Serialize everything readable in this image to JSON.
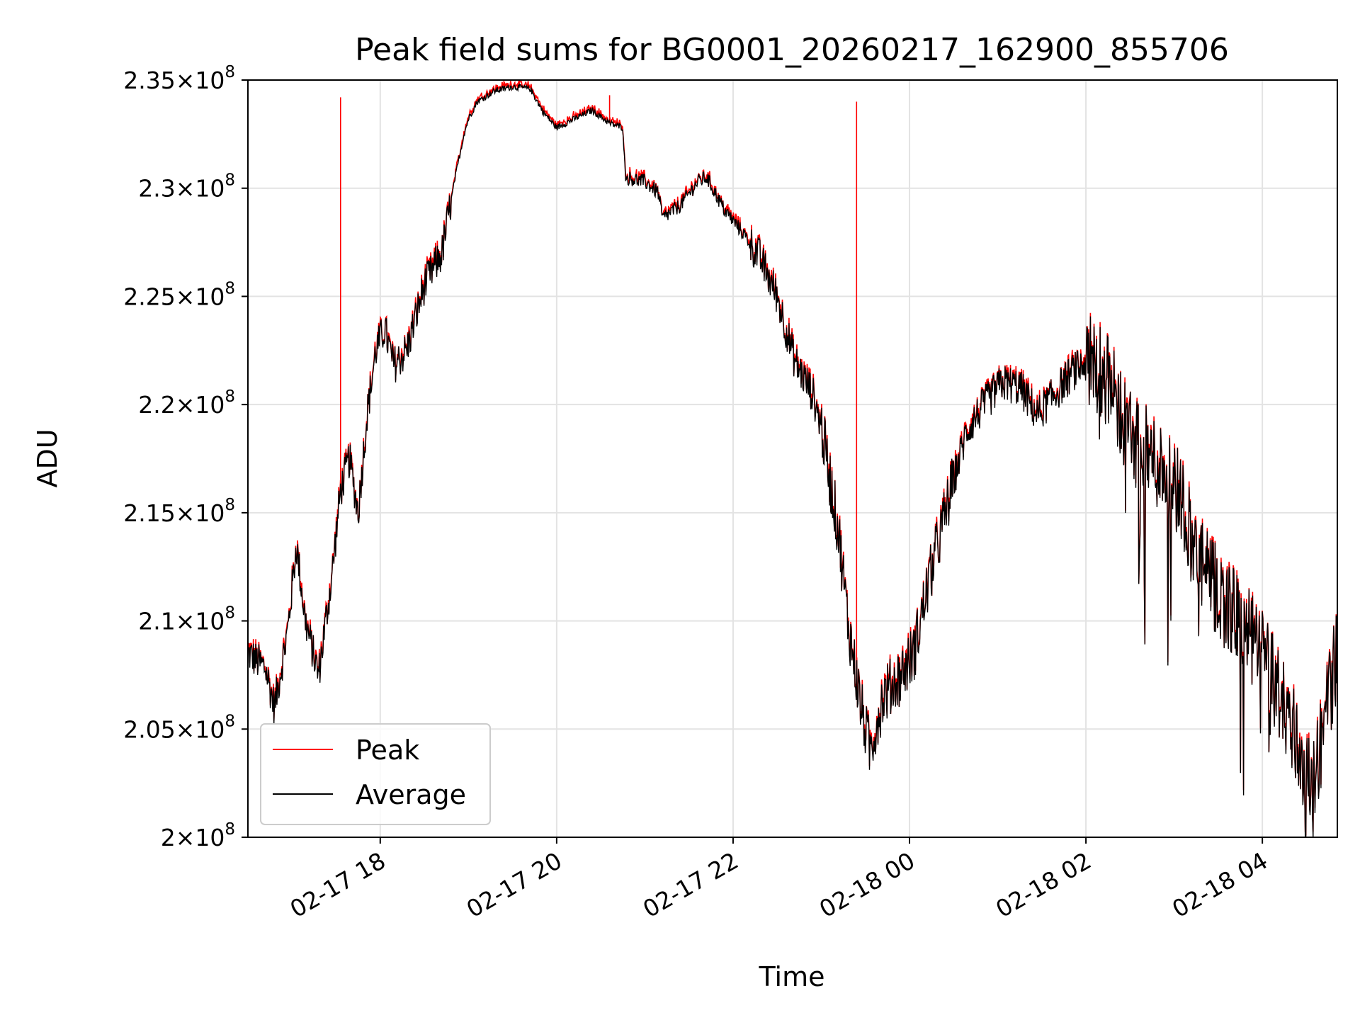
{
  "chart_data": {
    "type": "line",
    "title": "Peak field sums for BG0001_20260217_162900_855706",
    "xlabel": "Time",
    "ylabel": "ADU",
    "x_unit": "hours from 02-17 00:00",
    "xlim": [
      16.5,
      28.85
    ],
    "ylim": [
      200000000,
      235000000
    ],
    "grid": true,
    "legend_position": "lower-left",
    "y_ticks": [
      {
        "value": 200000000,
        "mantissa": "2",
        "exponent": "8"
      },
      {
        "value": 205000000,
        "mantissa": "2.05",
        "exponent": "8"
      },
      {
        "value": 210000000,
        "mantissa": "2.1",
        "exponent": "8"
      },
      {
        "value": 215000000,
        "mantissa": "2.15",
        "exponent": "8"
      },
      {
        "value": 220000000,
        "mantissa": "2.2",
        "exponent": "8"
      },
      {
        "value": 225000000,
        "mantissa": "2.25",
        "exponent": "8"
      },
      {
        "value": 230000000,
        "mantissa": "2.3",
        "exponent": "8"
      },
      {
        "value": 235000000,
        "mantissa": "2.35",
        "exponent": "8"
      }
    ],
    "x_ticks": [
      {
        "value": 18,
        "label": "02-17 18"
      },
      {
        "value": 20,
        "label": "02-17 20"
      },
      {
        "value": 22,
        "label": "02-17 22"
      },
      {
        "value": 24,
        "label": "02-18 00"
      },
      {
        "value": 26,
        "label": "02-18 02"
      },
      {
        "value": 28,
        "label": "02-18 04"
      }
    ],
    "tick_prefix": "×10",
    "average_points": [
      [
        16.5,
        208.5
      ],
      [
        16.7,
        207.8
      ],
      [
        16.8,
        206.0
      ],
      [
        16.95,
        209.5
      ],
      [
        17.05,
        213.5
      ],
      [
        17.15,
        210.0
      ],
      [
        17.3,
        207.5
      ],
      [
        17.45,
        212.0
      ],
      [
        17.55,
        216.0
      ],
      [
        17.65,
        217.5
      ],
      [
        17.75,
        215.0
      ],
      [
        17.85,
        219.5
      ],
      [
        17.95,
        222.5
      ],
      [
        18.05,
        223.5
      ],
      [
        18.15,
        221.8
      ],
      [
        18.3,
        222.5
      ],
      [
        18.5,
        225.5
      ],
      [
        18.7,
        227.0
      ],
      [
        18.85,
        230.5
      ],
      [
        18.95,
        232.5
      ],
      [
        19.0,
        233.2
      ],
      [
        19.1,
        234.0
      ],
      [
        19.3,
        234.5
      ],
      [
        19.5,
        234.7
      ],
      [
        19.7,
        234.6
      ],
      [
        19.85,
        233.5
      ],
      [
        20.0,
        232.8
      ],
      [
        20.2,
        233.2
      ],
      [
        20.4,
        233.6
      ],
      [
        20.6,
        233.0
      ],
      [
        20.75,
        232.8
      ],
      [
        20.78,
        230.5
      ],
      [
        21.0,
        230.3
      ],
      [
        21.15,
        229.8
      ],
      [
        21.2,
        228.6
      ],
      [
        21.4,
        229.2
      ],
      [
        21.6,
        230.3
      ],
      [
        21.7,
        230.5
      ],
      [
        21.9,
        229.0
      ],
      [
        22.1,
        228.0
      ],
      [
        22.3,
        226.8
      ],
      [
        22.5,
        225.0
      ],
      [
        22.7,
        222.0
      ],
      [
        22.9,
        220.5
      ],
      [
        23.0,
        219.0
      ],
      [
        23.1,
        216.5
      ],
      [
        23.2,
        214.0
      ],
      [
        23.3,
        210.0
      ],
      [
        23.45,
        206.0
      ],
      [
        23.55,
        204.0
      ],
      [
        23.7,
        206.5
      ],
      [
        23.9,
        207.5
      ],
      [
        24.05,
        208.5
      ],
      [
        24.2,
        211.5
      ],
      [
        24.35,
        214.0
      ],
      [
        24.5,
        216.5
      ],
      [
        24.65,
        218.8
      ],
      [
        24.85,
        220.0
      ],
      [
        25.05,
        221.0
      ],
      [
        25.25,
        220.8
      ],
      [
        25.45,
        219.5
      ],
      [
        25.65,
        220.5
      ],
      [
        25.85,
        221.5
      ],
      [
        26.05,
        222.0
      ],
      [
        26.2,
        221.5
      ],
      [
        26.35,
        220.0
      ],
      [
        26.55,
        218.3
      ],
      [
        26.75,
        217.5
      ],
      [
        26.95,
        216.8
      ],
      [
        27.1,
        215.5
      ],
      [
        27.25,
        213.0
      ],
      [
        27.45,
        211.5
      ],
      [
        27.65,
        210.5
      ],
      [
        27.8,
        209.5
      ],
      [
        27.95,
        208.8
      ],
      [
        28.05,
        208.0
      ],
      [
        28.2,
        206.5
      ],
      [
        28.35,
        205.0
      ],
      [
        28.45,
        203.5
      ],
      [
        28.55,
        202.5
      ],
      [
        28.65,
        204.0
      ],
      [
        28.75,
        206.5
      ],
      [
        28.85,
        208.5
      ]
    ],
    "peak_spikes": [
      [
        17.55,
        234.2
      ],
      [
        19.6,
        234.8
      ],
      [
        20.6,
        234.3
      ],
      [
        23.4,
        234.0
      ]
    ],
    "series": [
      {
        "name": "Peak",
        "color": "#ff0000",
        "values": "average_points plus peak_spikes"
      },
      {
        "name": "Average",
        "color": "#000000",
        "values": "average_points"
      }
    ]
  },
  "legend": {
    "items": [
      {
        "name": "Peak",
        "color": "#ff0000"
      },
      {
        "name": "Average",
        "color": "#000000"
      }
    ]
  }
}
